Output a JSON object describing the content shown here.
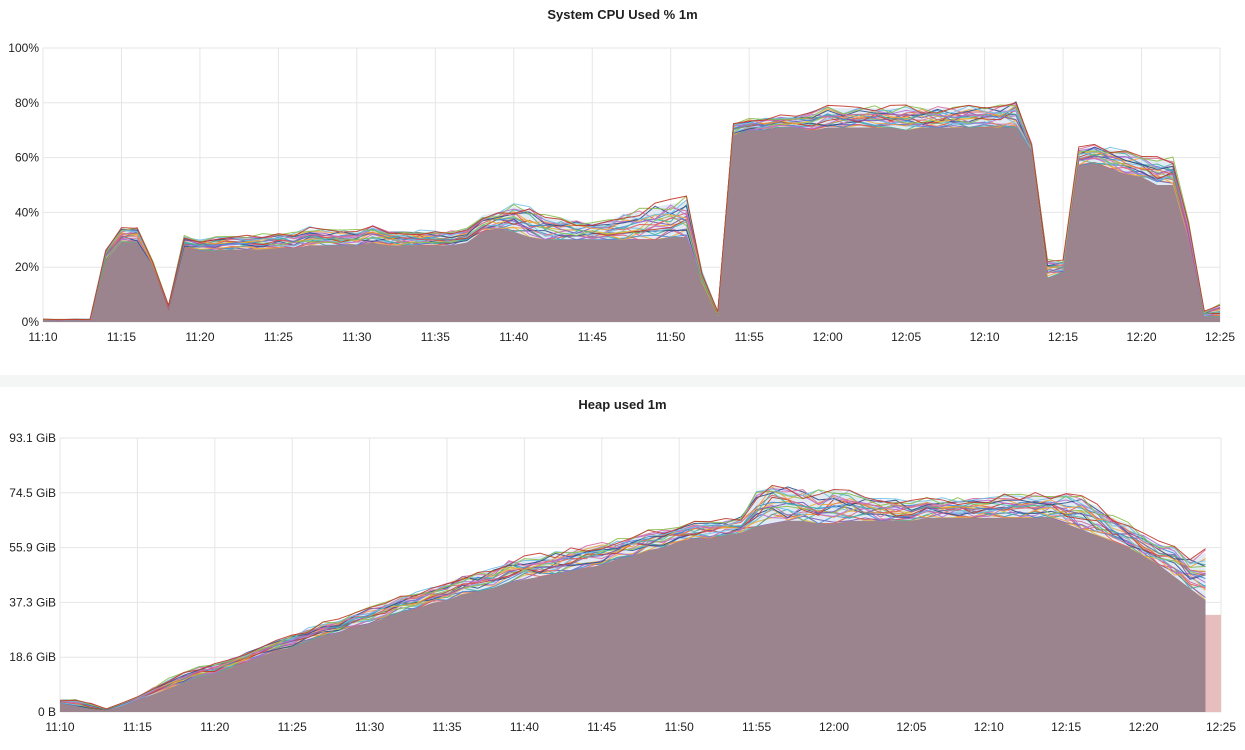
{
  "chart_data": [
    {
      "type": "area",
      "title": "System CPU Used % 1m",
      "x_ticks": [
        "11:10",
        "11:15",
        "11:20",
        "11:25",
        "11:30",
        "11:35",
        "11:40",
        "11:45",
        "11:50",
        "11:55",
        "12:00",
        "12:05",
        "12:10",
        "12:15",
        "12:20",
        "12:25"
      ],
      "y_ticks": [
        "0%",
        "20%",
        "40%",
        "60%",
        "80%",
        "100%"
      ],
      "ylim": [
        0,
        100
      ],
      "xlim": [
        "11:10",
        "12:25"
      ],
      "grid": true,
      "stacked_series_count": "many",
      "envelope": {
        "x": [
          "11:10",
          "11:11",
          "11:12",
          "11:13",
          "11:14",
          "11:15",
          "11:16",
          "11:17",
          "11:18",
          "11:19",
          "11:20",
          "11:21",
          "11:22",
          "11:23",
          "11:24",
          "11:25",
          "11:26",
          "11:27",
          "11:28",
          "11:29",
          "11:30",
          "11:31",
          "11:32",
          "11:33",
          "11:34",
          "11:35",
          "11:36",
          "11:37",
          "11:38",
          "11:39",
          "11:40",
          "11:41",
          "11:42",
          "11:43",
          "11:44",
          "11:45",
          "11:46",
          "11:47",
          "11:48",
          "11:49",
          "11:50",
          "11:51",
          "11:52",
          "11:53",
          "11:54",
          "11:55",
          "11:56",
          "11:57",
          "11:58",
          "11:59",
          "12:00",
          "12:01",
          "12:02",
          "12:03",
          "12:04",
          "12:05",
          "12:06",
          "12:07",
          "12:08",
          "12:09",
          "12:10",
          "12:11",
          "12:12",
          "12:13",
          "12:14",
          "12:15",
          "12:16",
          "12:17",
          "12:18",
          "12:19",
          "12:20",
          "12:21",
          "12:22",
          "12:23",
          "12:24",
          "12:25"
        ],
        "base": [
          0.5,
          0.5,
          0.5,
          0.5,
          22,
          29,
          29,
          20,
          4,
          27,
          26,
          26,
          26.5,
          26.5,
          26.5,
          27,
          27,
          28,
          28,
          28,
          28,
          29,
          28,
          28,
          28,
          28,
          28,
          29,
          33,
          34,
          33,
          31,
          30,
          30,
          30,
          30,
          30,
          30,
          30,
          30,
          31,
          31,
          14,
          2,
          68,
          70,
          70,
          71,
          71,
          70,
          71,
          71,
          71,
          71,
          71,
          70,
          71,
          71,
          71,
          71,
          71,
          71,
          71,
          62,
          16,
          18,
          57,
          58,
          56,
          54,
          53,
          50,
          50,
          30,
          2,
          2
        ],
        "top": [
          1,
          1,
          1,
          1,
          26,
          34,
          34,
          22,
          6,
          31,
          30,
          31,
          31,
          31,
          31.5,
          32,
          32,
          34,
          33,
          33,
          33,
          35,
          33,
          33,
          33,
          33,
          33,
          34,
          39,
          40,
          42,
          41,
          38,
          38,
          37,
          36,
          37,
          39,
          40,
          42,
          43,
          44,
          18,
          4,
          72,
          74,
          74,
          75,
          75,
          76,
          78,
          78,
          78,
          78,
          78,
          78,
          78,
          78,
          78,
          78,
          78,
          79,
          80,
          65,
          22,
          22,
          63,
          64,
          63,
          62,
          60,
          59,
          59,
          36,
          4,
          6
        ],
        "unit": "%"
      }
    },
    {
      "type": "area",
      "title": "Heap used 1m",
      "x_ticks": [
        "11:10",
        "11:15",
        "11:20",
        "11:25",
        "11:30",
        "11:35",
        "11:40",
        "11:45",
        "11:50",
        "11:55",
        "12:00",
        "12:05",
        "12:10",
        "12:15",
        "12:20",
        "12:25"
      ],
      "y_ticks": [
        "0 B",
        "18.6 GiB",
        "37.3 GiB",
        "55.9 GiB",
        "74.5 GiB",
        "93.1 GiB"
      ],
      "ylim": [
        0,
        93.1
      ],
      "xlim": [
        "11:10",
        "12:25"
      ],
      "grid": true,
      "stacked_series_count": "many",
      "envelope": {
        "x": [
          "11:10",
          "11:11",
          "11:12",
          "11:13",
          "11:14",
          "11:15",
          "11:16",
          "11:17",
          "11:18",
          "11:19",
          "11:20",
          "11:21",
          "11:22",
          "11:23",
          "11:24",
          "11:25",
          "11:26",
          "11:27",
          "11:28",
          "11:29",
          "11:30",
          "11:31",
          "11:32",
          "11:33",
          "11:34",
          "11:35",
          "11:36",
          "11:37",
          "11:38",
          "11:39",
          "11:40",
          "11:41",
          "11:42",
          "11:43",
          "11:44",
          "11:45",
          "11:46",
          "11:47",
          "11:48",
          "11:49",
          "11:50",
          "11:51",
          "11:52",
          "11:53",
          "11:54",
          "11:55",
          "11:56",
          "11:57",
          "11:58",
          "11:59",
          "12:00",
          "12:01",
          "12:02",
          "12:03",
          "12:04",
          "12:05",
          "12:06",
          "12:07",
          "12:08",
          "12:09",
          "12:10",
          "12:11",
          "12:12",
          "12:13",
          "12:14",
          "12:15",
          "12:16",
          "12:17",
          "12:18",
          "12:19",
          "12:20",
          "12:21",
          "12:22",
          "12:23",
          "12:24"
        ],
        "base": [
          3,
          2,
          1,
          0.5,
          2,
          4,
          6,
          8,
          10,
          12,
          13,
          15,
          17,
          19,
          21,
          22,
          24,
          26,
          27,
          29,
          30,
          32,
          34,
          35,
          37,
          38,
          40,
          41,
          42,
          44,
          45,
          46,
          47,
          48,
          49,
          50,
          52,
          53,
          55,
          56,
          58,
          59,
          59,
          60,
          61,
          63,
          64,
          65,
          65,
          64,
          64,
          65,
          65,
          65,
          65,
          65,
          66,
          66,
          66,
          66,
          66,
          66,
          66,
          66,
          66,
          64,
          62,
          60,
          58,
          56,
          53,
          50,
          46,
          42,
          38
        ],
        "top": [
          4,
          4,
          3,
          1,
          3,
          5,
          8,
          11,
          13,
          15,
          16,
          18,
          20,
          22,
          24,
          26,
          28,
          30,
          31,
          33,
          35,
          37,
          39,
          40,
          42,
          44,
          46,
          47,
          48,
          51,
          52,
          53,
          54,
          55,
          56,
          57,
          58,
          59,
          61,
          62,
          63,
          64,
          64,
          65,
          66,
          74,
          77,
          76,
          75,
          74,
          76,
          74,
          73,
          72,
          72,
          71,
          72,
          72,
          72,
          72,
          72,
          73,
          73,
          74,
          73,
          74,
          72,
          70,
          66,
          64,
          60,
          57,
          56,
          52,
          54
        ],
        "unit": "GiB"
      }
    }
  ],
  "colors": {
    "fill": "#9c848f",
    "grid": "#e6e6e6",
    "series": [
      "#e8b135",
      "#7c5bb8",
      "#e05c5c",
      "#3f8fd6",
      "#47b39c",
      "#f2a33a",
      "#b86bd6",
      "#2c4f8a",
      "#d66b9e",
      "#6fc0e6",
      "#8bbf4a",
      "#c0392b"
    ]
  }
}
